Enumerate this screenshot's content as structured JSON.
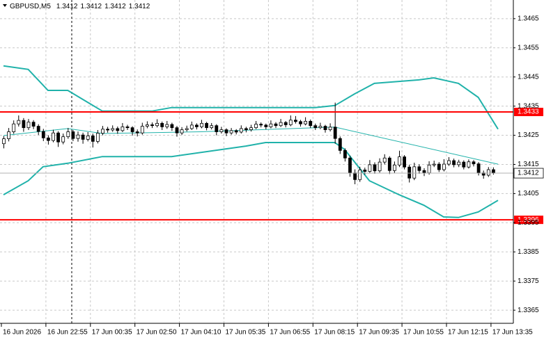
{
  "chart_data": {
    "type": "candlestick",
    "header": {
      "symbol": "GBPUSD,M5",
      "values": [
        1.3412,
        1.3412,
        1.3412,
        1.3412
      ]
    },
    "ylim": [
      1.33605,
      1.34714
    ],
    "yticks": [
      1.3365,
      1.3375,
      1.3385,
      1.3395,
      1.3405,
      1.3415,
      1.3425,
      1.3435,
      1.3445,
      1.3455,
      1.3465
    ],
    "grid": true,
    "bull_color": "#ffffff",
    "bear_color": "#000000",
    "outline_color": "#000000",
    "categories": [
      "16 Jun 2026",
      null,
      null,
      null,
      null,
      null,
      null,
      null,
      null,
      "16 Jun 22:55",
      null,
      null,
      null,
      null,
      null,
      null,
      null,
      null,
      "17 Jun 00:35",
      null,
      null,
      null,
      null,
      null,
      null,
      null,
      null,
      "17 Jun 02:50",
      null,
      null,
      null,
      null,
      null,
      null,
      null,
      null,
      "17 Jun 04:10",
      null,
      null,
      null,
      null,
      null,
      null,
      null,
      null,
      "17 Jun 05:35",
      null,
      null,
      null,
      null,
      null,
      null,
      null,
      null,
      "17 Jun 06:55",
      null,
      null,
      null,
      null,
      null,
      null,
      null,
      null,
      "17 Jun 08:15",
      null,
      null,
      null,
      null,
      null,
      null,
      null,
      null,
      "17 Jun 09:35",
      null,
      null,
      null,
      null,
      null,
      null,
      null,
      null,
      "17 Jun 10:55",
      null,
      null,
      null,
      null,
      null,
      null,
      null,
      null,
      "17 Jun 12:15",
      null,
      null,
      null,
      null,
      null,
      null,
      null,
      null,
      "17 Jun 13:35"
    ],
    "ohlc": [
      [
        1.34221,
        1.34247,
        1.34205,
        1.34238
      ],
      [
        1.34238,
        1.34275,
        1.34229,
        1.34262
      ],
      [
        1.34262,
        1.34301,
        1.34255,
        1.34289
      ],
      [
        1.34289,
        1.34318,
        1.3428,
        1.34301
      ],
      [
        1.34301,
        1.34309,
        1.34262,
        1.34276
      ],
      [
        1.34276,
        1.34306,
        1.34268,
        1.34295
      ],
      [
        1.34295,
        1.34302,
        1.34271,
        1.34281
      ],
      [
        1.34281,
        1.34288,
        1.34251,
        1.34263
      ],
      [
        1.34263,
        1.34272,
        1.3423,
        1.34241
      ],
      [
        1.34241,
        1.3425,
        1.34218,
        1.34232
      ],
      [
        1.34232,
        1.34269,
        1.34226,
        1.34258
      ],
      [
        1.34258,
        1.34264,
        1.3421,
        1.34227
      ],
      [
        1.34227,
        1.34256,
        1.34219,
        1.34245
      ],
      [
        1.34245,
        1.34275,
        1.34238,
        1.34262
      ],
      [
        1.34262,
        1.34268,
        1.3423,
        1.34239
      ],
      [
        1.34239,
        1.34263,
        1.34228,
        1.34251
      ],
      [
        1.34251,
        1.34259,
        1.34221,
        1.34236
      ],
      [
        1.34236,
        1.34261,
        1.34229,
        1.34248
      ],
      [
        1.34248,
        1.34256,
        1.34208,
        1.34229
      ],
      [
        1.34229,
        1.34268,
        1.34222,
        1.34257
      ],
      [
        1.34257,
        1.34282,
        1.3425,
        1.34271
      ],
      [
        1.34271,
        1.34279,
        1.34259,
        1.34268
      ],
      [
        1.34268,
        1.34284,
        1.34262,
        1.34273
      ],
      [
        1.34273,
        1.3428,
        1.34255,
        1.34266
      ],
      [
        1.34266,
        1.34292,
        1.34261,
        1.34279
      ],
      [
        1.34279,
        1.34286,
        1.34268,
        1.34276
      ],
      [
        1.34276,
        1.34281,
        1.34249,
        1.34262
      ],
      [
        1.34262,
        1.3427,
        1.34246,
        1.34258
      ],
      [
        1.34258,
        1.34293,
        1.34252,
        1.34281
      ],
      [
        1.34281,
        1.34298,
        1.34274,
        1.34286
      ],
      [
        1.34286,
        1.34294,
        1.34275,
        1.34283
      ],
      [
        1.34283,
        1.34305,
        1.34277,
        1.34291
      ],
      [
        1.34291,
        1.34297,
        1.34268,
        1.34279
      ],
      [
        1.34279,
        1.34299,
        1.34272,
        1.34287
      ],
      [
        1.34287,
        1.34293,
        1.34265,
        1.34276
      ],
      [
        1.34276,
        1.34282,
        1.34245,
        1.34258
      ],
      [
        1.34258,
        1.34278,
        1.34251,
        1.34269
      ],
      [
        1.34269,
        1.34283,
        1.34263,
        1.34273
      ],
      [
        1.34273,
        1.34297,
        1.34268,
        1.34285
      ],
      [
        1.34285,
        1.34291,
        1.3427,
        1.34279
      ],
      [
        1.34279,
        1.34303,
        1.34274,
        1.34291
      ],
      [
        1.34291,
        1.34296,
        1.34267,
        1.34276
      ],
      [
        1.34276,
        1.34292,
        1.3427,
        1.34283
      ],
      [
        1.34283,
        1.34288,
        1.3425,
        1.34262
      ],
      [
        1.34262,
        1.34279,
        1.34256,
        1.34269
      ],
      [
        1.34269,
        1.34274,
        1.34247,
        1.34258
      ],
      [
        1.34258,
        1.34275,
        1.34252,
        1.34266
      ],
      [
        1.34266,
        1.34271,
        1.34253,
        1.34261
      ],
      [
        1.34261,
        1.34284,
        1.34256,
        1.34273
      ],
      [
        1.34273,
        1.34279,
        1.3426,
        1.34269
      ],
      [
        1.34269,
        1.34286,
        1.34263,
        1.34276
      ],
      [
        1.34276,
        1.34299,
        1.34271,
        1.34288
      ],
      [
        1.34288,
        1.34294,
        1.34277,
        1.34285
      ],
      [
        1.34285,
        1.3429,
        1.3427,
        1.34279
      ],
      [
        1.34279,
        1.34301,
        1.34274,
        1.34289
      ],
      [
        1.34289,
        1.34295,
        1.34275,
        1.34283
      ],
      [
        1.34283,
        1.34306,
        1.34278,
        1.34294
      ],
      [
        1.34294,
        1.34299,
        1.34277,
        1.34286
      ],
      [
        1.34286,
        1.34318,
        1.34281,
        1.34302
      ],
      [
        1.34302,
        1.34316,
        1.3429,
        1.34297
      ],
      [
        1.34297,
        1.34303,
        1.3428,
        1.34289
      ],
      [
        1.34289,
        1.34312,
        1.34284,
        1.34298
      ],
      [
        1.34298,
        1.34304,
        1.34275,
        1.34283
      ],
      [
        1.34283,
        1.3429,
        1.34268,
        1.34276
      ],
      [
        1.34276,
        1.34293,
        1.34271,
        1.34281
      ],
      [
        1.34281,
        1.34286,
        1.34259,
        1.34269
      ],
      [
        1.34269,
        1.34291,
        1.34263,
        1.34278
      ],
      [
        1.34278,
        1.34362,
        1.34221,
        1.34239
      ],
      [
        1.34239,
        1.34246,
        1.34186,
        1.34198
      ],
      [
        1.34198,
        1.34205,
        1.3416,
        1.34172
      ],
      [
        1.34172,
        1.3418,
        1.34108,
        1.34121
      ],
      [
        1.34121,
        1.34133,
        1.34082,
        1.34098
      ],
      [
        1.34098,
        1.34142,
        1.3409,
        1.34131
      ],
      [
        1.34131,
        1.34139,
        1.34115,
        1.34126
      ],
      [
        1.34126,
        1.34165,
        1.34119,
        1.34149
      ],
      [
        1.34149,
        1.34157,
        1.34118,
        1.34128
      ],
      [
        1.34128,
        1.34171,
        1.34122,
        1.34158
      ],
      [
        1.34158,
        1.34185,
        1.3415,
        1.34172
      ],
      [
        1.34172,
        1.34178,
        1.34117,
        1.34129
      ],
      [
        1.34129,
        1.3416,
        1.34121,
        1.34148
      ],
      [
        1.34148,
        1.34197,
        1.34141,
        1.34176
      ],
      [
        1.34176,
        1.34182,
        1.34133,
        1.34141
      ],
      [
        1.34141,
        1.34149,
        1.34088,
        1.34103
      ],
      [
        1.34103,
        1.34156,
        1.34096,
        1.34142
      ],
      [
        1.34142,
        1.3415,
        1.34118,
        1.34129
      ],
      [
        1.34129,
        1.34137,
        1.3411,
        1.34121
      ],
      [
        1.34121,
        1.34161,
        1.34115,
        1.34148
      ],
      [
        1.34148,
        1.34163,
        1.34141,
        1.34151
      ],
      [
        1.34151,
        1.34158,
        1.34124,
        1.34132
      ],
      [
        1.34132,
        1.34168,
        1.34126,
        1.34151
      ],
      [
        1.34151,
        1.34175,
        1.34145,
        1.34163
      ],
      [
        1.34163,
        1.3417,
        1.3414,
        1.34149
      ],
      [
        1.34149,
        1.34166,
        1.34141,
        1.34158
      ],
      [
        1.34158,
        1.34164,
        1.34133,
        1.34141
      ],
      [
        1.34141,
        1.34167,
        1.34136,
        1.34159
      ],
      [
        1.34159,
        1.34165,
        1.34143,
        1.34152
      ],
      [
        1.34152,
        1.34158,
        1.34112,
        1.34121
      ],
      [
        1.34121,
        1.34129,
        1.34101,
        1.34113
      ],
      [
        1.34113,
        1.34141,
        1.34107,
        1.34132
      ],
      [
        1.34132,
        1.3414,
        1.34115,
        1.3412
      ]
    ],
    "bands": [
      {
        "color": "#20b2aa",
        "x": [
          0,
          5,
          9,
          13,
          20,
          30,
          34,
          63,
          67,
          71,
          75,
          84,
          87,
          92,
          96,
          100
        ],
        "values": [
          1.34488,
          1.34476,
          1.34404,
          1.34404,
          1.34333,
          1.34333,
          1.34345,
          1.34345,
          1.34352,
          1.34392,
          1.34428,
          1.3444,
          1.34447,
          1.34428,
          1.3438,
          1.34271
        ]
      },
      {
        "color": "#20b2aa",
        "x": [
          0,
          13,
          20,
          40,
          67,
          100
        ],
        "values": [
          1.34249,
          1.34273,
          1.34256,
          1.34262,
          1.34278,
          1.34151
        ]
      },
      {
        "color": "#20b2aa",
        "x": [
          0,
          5,
          8,
          13,
          20,
          34,
          49,
          53,
          67,
          69,
          74,
          80,
          85,
          89,
          92,
          96,
          100
        ],
        "values": [
          1.34046,
          1.34094,
          1.34142,
          1.34154,
          1.34177,
          1.34177,
          1.34213,
          1.34225,
          1.34225,
          1.34201,
          1.34094,
          1.34046,
          1.3401,
          1.3397,
          1.33968,
          1.33987,
          1.34027
        ]
      }
    ],
    "hlines": [
      {
        "value": 1.3433,
        "color": "#ff0000"
      },
      {
        "value": 1.3396,
        "color": "#ff0000"
      }
    ],
    "bid": 1.3412
  }
}
